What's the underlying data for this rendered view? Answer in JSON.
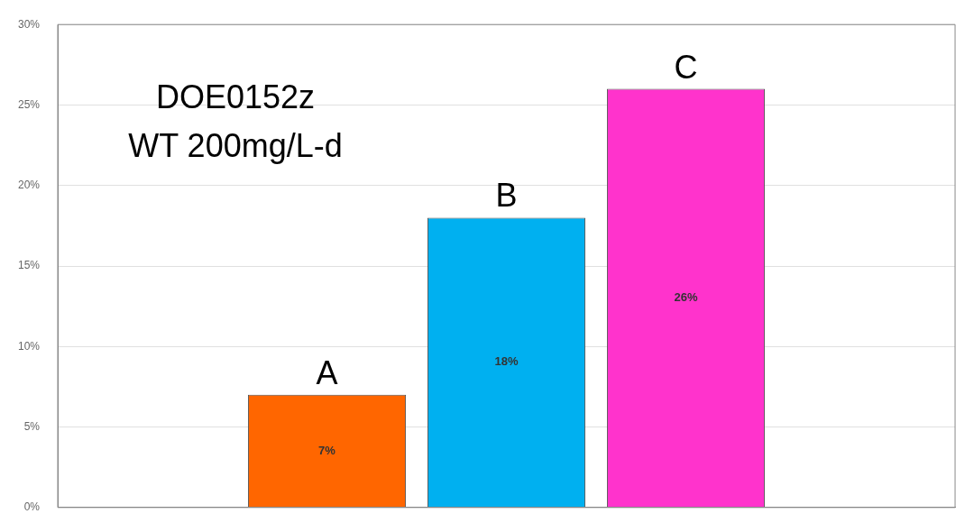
{
  "chart_data": {
    "type": "bar",
    "categories": [
      null,
      null,
      null,
      null,
      null
    ],
    "values": [
      null,
      7,
      18,
      26,
      null
    ],
    "colors": [
      "#ff6600",
      "#ff6600",
      "#00b0f0",
      "#ff33cc",
      "#ff33cc"
    ],
    "value_labels": [
      null,
      "7%",
      "18%",
      "26%",
      null
    ],
    "ylim": [
      0,
      30
    ],
    "yticks": [
      {
        "value": 0,
        "label": "0%"
      },
      {
        "value": 5,
        "label": "5%"
      },
      {
        "value": 10,
        "label": "10%"
      },
      {
        "value": 15,
        "label": "15%"
      },
      {
        "value": 20,
        "label": "20%"
      },
      {
        "value": 25,
        "label": "25%"
      },
      {
        "value": 30,
        "label": "30%"
      }
    ],
    "grid": "y",
    "annotations": [
      "DOE0152z",
      "WT 200mg/L-d",
      {
        "text": "A",
        "y": 7
      },
      {
        "text": "B",
        "y": 18
      },
      {
        "text": "C",
        "y": 26
      }
    ]
  }
}
